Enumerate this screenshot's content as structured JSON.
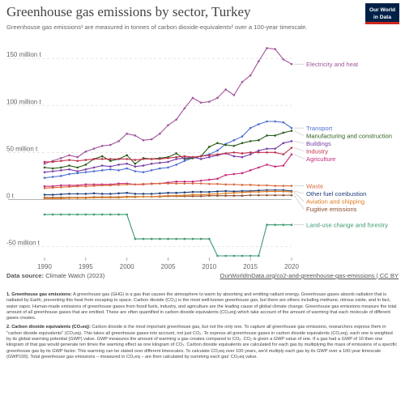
{
  "title": "Greenhouse gas emissions by sector, Turkey",
  "subtitle": "Greenhouse gas emissions¹ are measured in tonnes of carbon dioxide-equivalents² over a 100-year timescale.",
  "logo": {
    "line1": "Our World",
    "line2": "in Data"
  },
  "source": {
    "label": "Data source:",
    "text": "Climate Watch (2023)",
    "link": "OurWorldInData.org/co2-and-greenhouse-gas-emissions | CC BY"
  },
  "notes": [
    {
      "heading": "1. Greenhouse gas emissions:",
      "text": "A greenhouse gas (GHG) is a gas that causes the atmosphere to warm by absorbing and emitting radiant energy. Greenhouse gases absorb radiation that is radiated by Earth, preventing this heat from escaping to space. Carbon dioxide (CO₂) is the most well-known greenhouse gas, but there are others including methane, nitrous oxide, and in fact, water vapor. Human-made emissions of greenhouse gases from fossil fuels, industry, and agriculture are the leading cause of global climate change. Greenhouse gas emissions measure the total amount of all greenhouse gases that are emitted. These are often quantified in carbon dioxide equivalents (CO₂eq) which take account of the amount of warming that each molecule of different gases creates."
    },
    {
      "heading": "2. Carbon dioxide equivalents (CO₂eq):",
      "text": "Carbon dioxide is the most important greenhouse gas, but not the only one. To capture all greenhouse gas emissions, researchers express them in \"carbon dioxide equivalents\" (CO₂eq). This takes all greenhouse gases into account, not just CO₂. To express all greenhouse gases in carbon dioxide equivalents (CO₂eq), each one is weighted by its global warming potential (GWP) value. GWP measures the amount of warming a gas creates compared to CO₂. CO₂ is given a GWP value of one. If a gas had a GWP of 10 then one kilogram of that gas would generate ten times the warming effect as one kilogram of CO₂. Carbon dioxide equivalents are calculated for each gas by multiplying the mass of emissions of a specific greenhouse gas by its GWP factor. This warming can be stated over different timescales. To calculate CO₂eq over 100 years, we'd multiply each gas by its GWP over a 100-year timescale (GWP100). Total greenhouse gas emissions – measured in CO₂eq – are then calculated by summing each gas' CO₂eq value."
    }
  ],
  "chart_data": {
    "type": "line",
    "title": "Greenhouse gas emissions by sector, Turkey",
    "ylabel": "",
    "xlabel": "",
    "x": [
      1990,
      1991,
      1992,
      1993,
      1994,
      1995,
      1996,
      1997,
      1998,
      1999,
      2000,
      2001,
      2002,
      2003,
      2004,
      2005,
      2006,
      2007,
      2008,
      2009,
      2010,
      2011,
      2012,
      2013,
      2014,
      2015,
      2016,
      2017,
      2018,
      2019,
      2020
    ],
    "ylim": [
      -60,
      170
    ],
    "yticks": [
      -50,
      0,
      50,
      100,
      150
    ],
    "ytick_labels": [
      "-50 million t",
      "0 t",
      "50 million t",
      "100 million t",
      "150 million t"
    ],
    "xticks": [
      1990,
      1995,
      2000,
      2005,
      2010,
      2015,
      2020
    ],
    "grid": "horizontal-dashed",
    "legend": "right (labels at line ends)",
    "series": [
      {
        "name": "Electricity and heat",
        "color": "#a2559c",
        "values": [
          38,
          41,
          44,
          47,
          45,
          51,
          54,
          57,
          58,
          62,
          70,
          68,
          63,
          64,
          70,
          79,
          85,
          97,
          108,
          103,
          104,
          108,
          117,
          111,
          125,
          132,
          147,
          161,
          160,
          149,
          144
        ]
      },
      {
        "name": "Transport",
        "color": "#4c6fd1",
        "values": [
          23,
          24,
          25,
          27,
          28,
          29,
          30,
          31,
          32,
          31,
          33,
          30,
          29,
          31,
          33,
          34,
          37,
          41,
          44,
          46,
          48,
          52,
          59,
          63,
          67,
          76,
          80,
          83,
          83,
          82,
          76
        ]
      },
      {
        "name": "Manufacturing and construction",
        "color": "#2c5e1a",
        "values": [
          34,
          33,
          34,
          36,
          34,
          37,
          43,
          46,
          41,
          43,
          47,
          38,
          44,
          43,
          44,
          45,
          49,
          43,
          44,
          46,
          56,
          60,
          58,
          57,
          60,
          62,
          63,
          68,
          68,
          71,
          73
        ]
      },
      {
        "name": "Buildings",
        "color": "#7a3fa6",
        "values": [
          29,
          30,
          31,
          32,
          30,
          32,
          34,
          36,
          35,
          37,
          38,
          35,
          36,
          38,
          39,
          40,
          43,
          44,
          45,
          43,
          45,
          47,
          49,
          46,
          45,
          48,
          52,
          54,
          54,
          60,
          62
        ]
      },
      {
        "name": "Agriculture",
        "color": "#c82a7a",
        "values": [
          14,
          14,
          15,
          15,
          15,
          16,
          16,
          16,
          16,
          17,
          17,
          16,
          16,
          17,
          17,
          18,
          19,
          19,
          19,
          20,
          21,
          22,
          26,
          27,
          28,
          31,
          34,
          37,
          35,
          36,
          48
        ]
      },
      {
        "name": "Industry",
        "color": "#c0334d",
        "values": [
          40,
          40,
          41,
          42,
          41,
          42,
          43,
          43,
          43,
          43,
          43,
          42,
          43,
          43,
          43,
          44,
          45,
          46,
          45,
          46,
          47,
          48,
          49,
          50,
          49,
          50,
          50,
          50,
          50,
          48,
          55
        ]
      },
      {
        "name": "Waste",
        "color": "#d96a3d",
        "values": [
          12,
          12.5,
          13,
          13.5,
          14,
          14,
          14.5,
          15,
          15,
          15.5,
          16,
          16,
          16.5,
          16.5,
          17,
          17,
          17,
          17,
          17,
          17,
          16.5,
          16.5,
          16,
          16,
          15.5,
          15.5,
          15,
          15,
          14.5,
          14.5,
          14.5
        ]
      },
      {
        "name": "Other fuel combustion",
        "color": "#1d3d7a",
        "values": [
          5,
          5,
          5.5,
          6,
          6,
          6,
          6.5,
          6,
          6,
          6.5,
          7,
          6,
          6,
          6,
          6.5,
          7,
          7,
          7.5,
          8,
          8,
          8,
          8.5,
          9,
          8.5,
          9,
          9,
          9.5,
          10,
          10,
          10,
          9
        ]
      },
      {
        "name": "Fugitive emissions",
        "color": "#8c4e2c",
        "values": [
          2,
          2,
          2,
          2,
          2,
          2,
          2.5,
          2.5,
          2.5,
          2.5,
          3,
          3,
          3,
          3,
          3,
          3.5,
          3.5,
          3.5,
          3.5,
          3.5,
          4,
          4,
          4,
          4,
          4,
          4.5,
          4.5,
          4.5,
          4.5,
          4.5,
          4.5
        ]
      },
      {
        "name": "Aviation and shipping",
        "color": "#e07a1f",
        "values": [
          1,
          1,
          1,
          1.5,
          1.5,
          1.5,
          2,
          2,
          2,
          2,
          2.5,
          2.5,
          3,
          3,
          3.5,
          4,
          4,
          4.5,
          5,
          5,
          5.5,
          6,
          6.5,
          7,
          7.5,
          8,
          8,
          8.5,
          8.5,
          8.5,
          8
        ]
      },
      {
        "name": "Land-use change and forestry",
        "color": "#3d9970",
        "values": [
          -16,
          -16,
          -16,
          -16,
          -16,
          -16,
          -16,
          -16,
          -16,
          -16,
          -16,
          -42,
          -42,
          -42,
          -42,
          -42,
          -42,
          -42,
          -42,
          -42,
          -42,
          -60,
          -60,
          -60,
          -60,
          -60,
          -60,
          -27,
          -27,
          -27,
          -27
        ]
      }
    ]
  }
}
